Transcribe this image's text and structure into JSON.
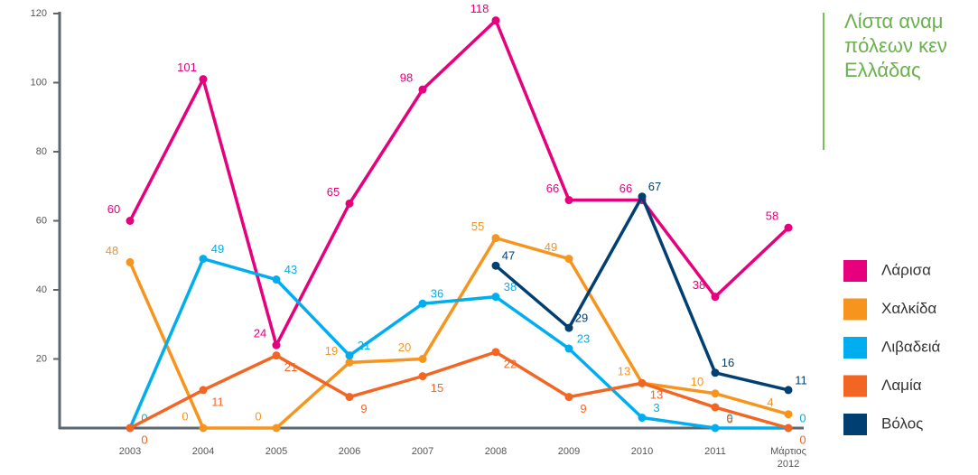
{
  "chart_data": {
    "type": "line",
    "title": "Λίστα αναμ\nπόλεων κεν\nΕλλάδας",
    "categories": [
      "2003",
      "2004",
      "2005",
      "2006",
      "2007",
      "2008",
      "2009",
      "2010",
      "2011",
      "Μάρτιος\n2012"
    ],
    "series": [
      {
        "name": "Λάρισα",
        "color": "#e6007e",
        "values": [
          60,
          101,
          24,
          65,
          98,
          118,
          66,
          66,
          38,
          58
        ]
      },
      {
        "name": "Χαλκίδα",
        "color": "#f7941d",
        "values": [
          48,
          0,
          0,
          19,
          20,
          55,
          49,
          13,
          10,
          4
        ]
      },
      {
        "name": "Λιβαδειά",
        "color": "#00aeef",
        "values": [
          0,
          49,
          43,
          21,
          36,
          38,
          23,
          3,
          0,
          0
        ]
      },
      {
        "name": "Λαμία",
        "color": "#f26522",
        "values": [
          0,
          11,
          21,
          9,
          15,
          22,
          9,
          13,
          6,
          0
        ]
      },
      {
        "name": "Βόλος",
        "color": "#003f72",
        "values": [
          null,
          null,
          null,
          null,
          null,
          47,
          29,
          67,
          16,
          11
        ]
      }
    ],
    "ylim": [
      0,
      120
    ],
    "yticks": [
      20,
      40,
      60,
      80,
      100,
      120
    ],
    "legend": "right"
  }
}
